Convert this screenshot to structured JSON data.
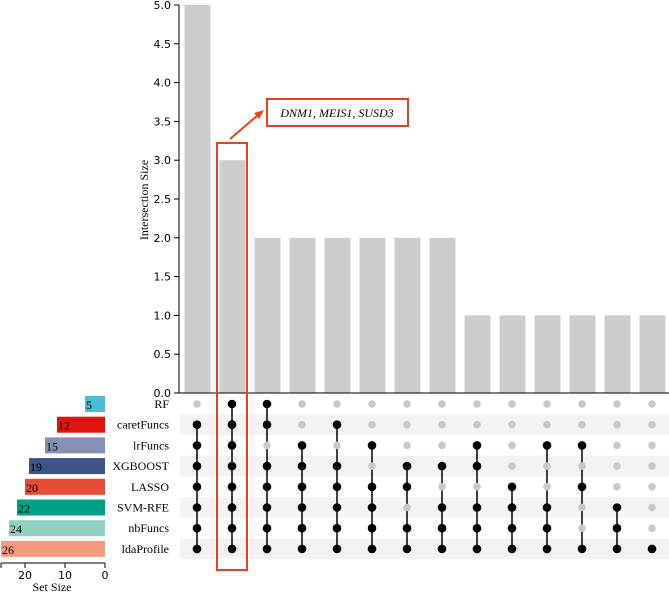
{
  "chart_data": {
    "type": "bar",
    "subtype": "upset",
    "ylabel": "Intersection Size",
    "ylim": [
      0,
      5
    ],
    "yticks": [
      "0.0",
      "0.5",
      "1.0",
      "1.5",
      "2.0",
      "2.5",
      "3.0",
      "3.5",
      "4.0",
      "4.5",
      "5.0"
    ],
    "sets": [
      {
        "name": "RF",
        "size": 5,
        "color": "#4dbbd5"
      },
      {
        "name": "caretFuncs",
        "size": 12,
        "color": "#e3140c"
      },
      {
        "name": "lrFuncs",
        "size": 15,
        "color": "#8491b4"
      },
      {
        "name": "XGBOOST",
        "size": 19,
        "color": "#3c5488"
      },
      {
        "name": "LASSO",
        "size": 20,
        "color": "#e64b35"
      },
      {
        "name": "SVM-RFE",
        "size": 22,
        "color": "#00a087"
      },
      {
        "name": "nbFuncs",
        "size": 24,
        "color": "#91d1c2"
      },
      {
        "name": "ldaProfile",
        "size": 26,
        "color": "#f39b7f"
      }
    ],
    "set_size_label": "Set Size",
    "set_size_ticks": [
      "20",
      "10",
      "0"
    ],
    "intersections": [
      {
        "size": 5,
        "members": [
          0,
          1,
          1,
          1,
          1,
          1,
          1,
          1
        ]
      },
      {
        "size": 3,
        "members": [
          1,
          1,
          1,
          1,
          1,
          1,
          1,
          1
        ]
      },
      {
        "size": 2,
        "members": [
          1,
          1,
          0,
          1,
          1,
          1,
          1,
          1
        ]
      },
      {
        "size": 2,
        "members": [
          0,
          0,
          1,
          1,
          1,
          1,
          1,
          1
        ]
      },
      {
        "size": 2,
        "members": [
          0,
          1,
          0,
          1,
          1,
          1,
          1,
          1
        ]
      },
      {
        "size": 2,
        "members": [
          0,
          0,
          1,
          0,
          1,
          1,
          1,
          1
        ]
      },
      {
        "size": 2,
        "members": [
          0,
          0,
          0,
          1,
          1,
          0,
          1,
          1
        ]
      },
      {
        "size": 2,
        "members": [
          0,
          0,
          0,
          1,
          0,
          1,
          1,
          1
        ]
      },
      {
        "size": 1,
        "members": [
          0,
          0,
          1,
          1,
          0,
          1,
          1,
          1
        ]
      },
      {
        "size": 1,
        "members": [
          0,
          0,
          0,
          0,
          1,
          1,
          1,
          1
        ]
      },
      {
        "size": 1,
        "members": [
          0,
          0,
          1,
          0,
          0,
          1,
          1,
          1
        ]
      },
      {
        "size": 1,
        "members": [
          0,
          0,
          1,
          0,
          1,
          0,
          0,
          1
        ]
      },
      {
        "size": 1,
        "members": [
          0,
          0,
          0,
          0,
          0,
          1,
          1,
          1
        ]
      },
      {
        "size": 1,
        "members": [
          0,
          0,
          0,
          0,
          0,
          0,
          0,
          1
        ]
      }
    ],
    "bar_color": "#cccccc",
    "highlight": {
      "intersection_index": 1,
      "annotation": "DNM1, MEIS1, SUSD3",
      "color": "#e5421c"
    }
  }
}
